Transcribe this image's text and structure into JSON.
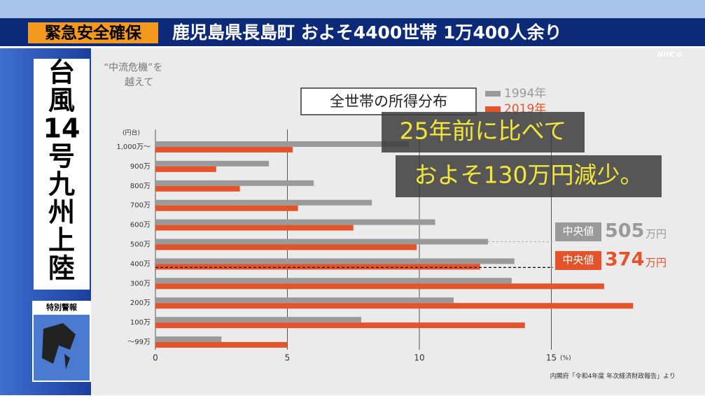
{
  "banner": {
    "tag": "緊急安全確保",
    "text": "鹿児島県長島町 およそ4400世帯 1万400人余り"
  },
  "side_title": [
    "台",
    "風",
    "14",
    "号",
    "九",
    "州",
    "上",
    "陸"
  ],
  "warning_label": "特別警報",
  "program_title": [
    "“中流危機”を",
    "越えて"
  ],
  "logo": "NHK G",
  "chart_data": {
    "type": "barh",
    "title": "全世帯の所得分布",
    "y_axis_label": "(円台)",
    "x_axis_label": "(%)",
    "categories": [
      "1,000万〜",
      "900万",
      "800万",
      "700万",
      "600万",
      "500万",
      "400万",
      "300万",
      "200万",
      "100万",
      "〜99万"
    ],
    "series": [
      {
        "name": "1994年",
        "color": "#9a9a9a",
        "values": [
          9.6,
          4.3,
          6.0,
          8.2,
          10.6,
          12.6,
          13.6,
          13.5,
          11.3,
          7.8,
          2.5
        ]
      },
      {
        "name": "2019年",
        "color": "#e5532b",
        "values": [
          5.2,
          2.3,
          3.2,
          5.4,
          7.5,
          9.9,
          12.3,
          17.0,
          18.1,
          14.0,
          5.0
        ]
      }
    ],
    "xlim": [
      0,
      20
    ],
    "xticks": [
      0,
      5,
      10,
      15
    ],
    "grid": true,
    "annotations": [
      "25年前に比べて",
      "およそ130万円減少。"
    ],
    "medians": [
      {
        "label": "中央値",
        "value": 505,
        "unit": "万円",
        "color": "#9a9a9a"
      },
      {
        "label": "中央値",
        "value": 374,
        "unit": "万円",
        "color": "#e5532b"
      }
    ],
    "source": "内閣府「令和4年度 年次経済財政報告」より"
  }
}
